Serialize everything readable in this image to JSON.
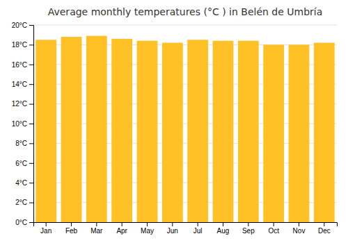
{
  "chart_data": {
    "type": "bar",
    "title": "Average monthly temperatures (°C ) in Belén de Umbría",
    "categories": [
      "Jan",
      "Feb",
      "Mar",
      "Apr",
      "May",
      "Jun",
      "Jul",
      "Aug",
      "Sep",
      "Oct",
      "Nov",
      "Dec"
    ],
    "values": [
      18.5,
      18.8,
      18.9,
      18.6,
      18.4,
      18.2,
      18.5,
      18.4,
      18.4,
      18.0,
      18.0,
      18.2
    ],
    "color": "#FFC125",
    "ylim": [
      0,
      20
    ],
    "yticks": [
      {
        "value": 0,
        "label": "0°C"
      },
      {
        "value": 2,
        "label": "2°C"
      },
      {
        "value": 4,
        "label": "4°C"
      },
      {
        "value": 6,
        "label": "6°C"
      },
      {
        "value": 8,
        "label": "8°C"
      },
      {
        "value": 10,
        "label": "10°C"
      },
      {
        "value": 12,
        "label": "12°C"
      },
      {
        "value": 14,
        "label": "14°C"
      },
      {
        "value": 16,
        "label": "16°C"
      },
      {
        "value": 18,
        "label": "18°C"
      },
      {
        "value": 20,
        "label": "20°C"
      }
    ],
    "grid": true
  }
}
